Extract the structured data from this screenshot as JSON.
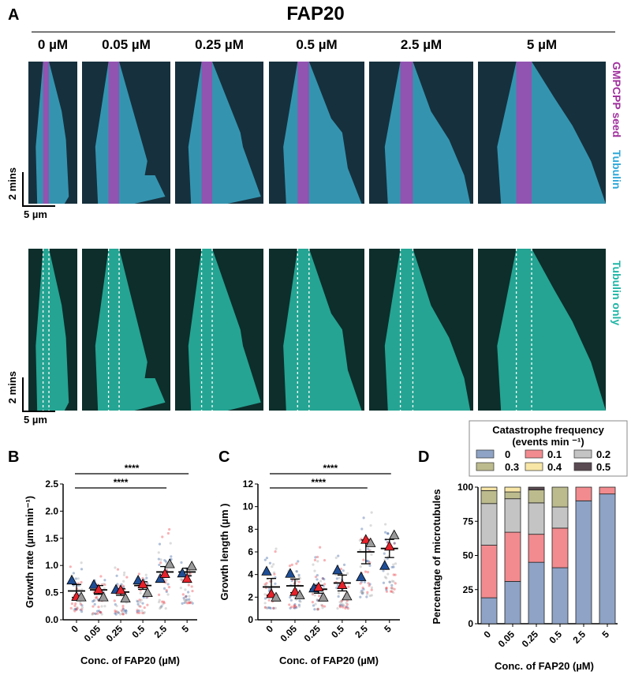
{
  "panel_a": {
    "label": "A",
    "title": "FAP20",
    "columns": [
      "0 µM",
      "0.05 µM",
      "0.25 µM",
      "0.5 µM",
      "2.5 µM",
      "5 µM"
    ],
    "top_row_labels": {
      "seed": "GMPCPP seed",
      "tubulin": "Tubulin"
    },
    "bottom_row_label": "Tubulin only",
    "scale_time": "2 mins",
    "scale_length": "5 µm",
    "colors": {
      "seed": "#a0309e",
      "tubulin": "#2fa8d8",
      "tubulin_only": "#1fb5a5"
    }
  },
  "chart_data": [
    {
      "panel": "B",
      "type": "scatter",
      "title": "",
      "xlabel": "Conc. of FAP20 (µM)",
      "ylabel": "Growth rate (µm min⁻¹)",
      "categories": [
        "0",
        "0.05",
        "0.25",
        "0.5",
        "2.5",
        "5"
      ],
      "ylim": [
        0,
        2.5
      ],
      "yticks": [
        "0.0",
        "0.5",
        "1.0",
        "1.5",
        "2.0",
        "2.5"
      ],
      "means": [
        0.53,
        0.55,
        0.51,
        0.63,
        0.88,
        0.88
      ],
      "sem": [
        0.12,
        0.08,
        0.06,
        0.07,
        0.1,
        0.07
      ],
      "replicates": [
        {
          "name": "rep1",
          "color": "#1f4e96",
          "values": [
            0.73,
            0.65,
            0.56,
            0.73,
            0.76,
            0.86
          ]
        },
        {
          "name": "rep2",
          "color": "#e8212a",
          "values": [
            0.43,
            0.56,
            0.55,
            0.66,
            0.85,
            0.76
          ]
        },
        {
          "name": "rep3",
          "color": "#9a9a9a",
          "values": [
            0.42,
            0.42,
            0.4,
            0.5,
            1.03,
            0.99
          ]
        }
      ],
      "point_ranges": [
        [
          0.15,
          1.3
        ],
        [
          0.1,
          0.95
        ],
        [
          0.1,
          1.05
        ],
        [
          0.12,
          1.2
        ],
        [
          0.2,
          1.97
        ],
        [
          0.3,
          1.45
        ]
      ],
      "significance": [
        {
          "from": "0",
          "to": "2.5",
          "label": "****"
        },
        {
          "from": "0",
          "to": "5",
          "label": "****"
        }
      ]
    },
    {
      "panel": "C",
      "type": "scatter",
      "title": "",
      "xlabel": "Conc. of FAP20 (µM)",
      "ylabel": "Growth length (µm )",
      "categories": [
        "0",
        "0.05",
        "0.25",
        "0.5",
        "2.5",
        "5"
      ],
      "ylim": [
        0,
        12
      ],
      "yticks": [
        "0",
        "2",
        "4",
        "6",
        "8",
        "10",
        "12"
      ],
      "means": [
        2.9,
        3.0,
        2.7,
        3.25,
        6.0,
        6.3
      ],
      "sem": [
        0.75,
        0.6,
        0.35,
        0.7,
        1.05,
        0.8
      ],
      "replicates": [
        {
          "name": "rep1",
          "color": "#1f4e96",
          "values": [
            4.3,
            4.1,
            2.8,
            4.4,
            3.8,
            4.8
          ]
        },
        {
          "name": "rep2",
          "color": "#e8212a",
          "values": [
            2.3,
            2.5,
            2.9,
            3.1,
            7.1,
            6.5
          ]
        },
        {
          "name": "rep3",
          "color": "#9a9a9a",
          "values": [
            2.0,
            2.2,
            2.0,
            2.1,
            6.8,
            7.5
          ]
        }
      ],
      "point_ranges": [
        [
          1.0,
          7.2
        ],
        [
          1.0,
          6.6
        ],
        [
          0.9,
          7.1
        ],
        [
          1.0,
          7.0
        ],
        [
          2.0,
          10.5
        ],
        [
          2.4,
          10.4
        ]
      ],
      "significance": [
        {
          "from": "0",
          "to": "2.5",
          "label": "****"
        },
        {
          "from": "0",
          "to": "5",
          "label": "****"
        }
      ]
    },
    {
      "panel": "D",
      "type": "bar",
      "stacked": true,
      "xlabel": "Conc. of FAP20 (µM)",
      "ylabel": "Percentage of microtubules",
      "categories": [
        "0",
        "0.05",
        "0.25",
        "0.5",
        "2.5",
        "5"
      ],
      "ylim": [
        0,
        100
      ],
      "yticks": [
        "0",
        "25",
        "50",
        "75",
        "100"
      ],
      "legend_title": "Catastrophe frequency",
      "legend_subtitle": "(events min ⁻¹)",
      "legend_position": "top",
      "series": [
        {
          "name": "0",
          "color": "#8ea3c6",
          "values": [
            19,
            31,
            45,
            41,
            90,
            95
          ]
        },
        {
          "name": "0.1",
          "color": "#f28b8f",
          "values": [
            38.5,
            36,
            20.5,
            29,
            10,
            5
          ]
        },
        {
          "name": "0.2",
          "color": "#c4c4c4",
          "values": [
            30.5,
            24.5,
            23,
            15.5,
            0,
            0
          ]
        },
        {
          "name": "0.3",
          "color": "#bcbb8e",
          "values": [
            9.5,
            5,
            9.5,
            14.5,
            0,
            0
          ]
        },
        {
          "name": "0.4",
          "color": "#f7e6a6",
          "values": [
            2.5,
            3.5,
            0,
            0,
            0,
            0
          ]
        },
        {
          "name": "0.5",
          "color": "#5a4a52",
          "values": [
            0,
            0,
            2,
            0,
            0,
            0
          ]
        }
      ]
    }
  ]
}
